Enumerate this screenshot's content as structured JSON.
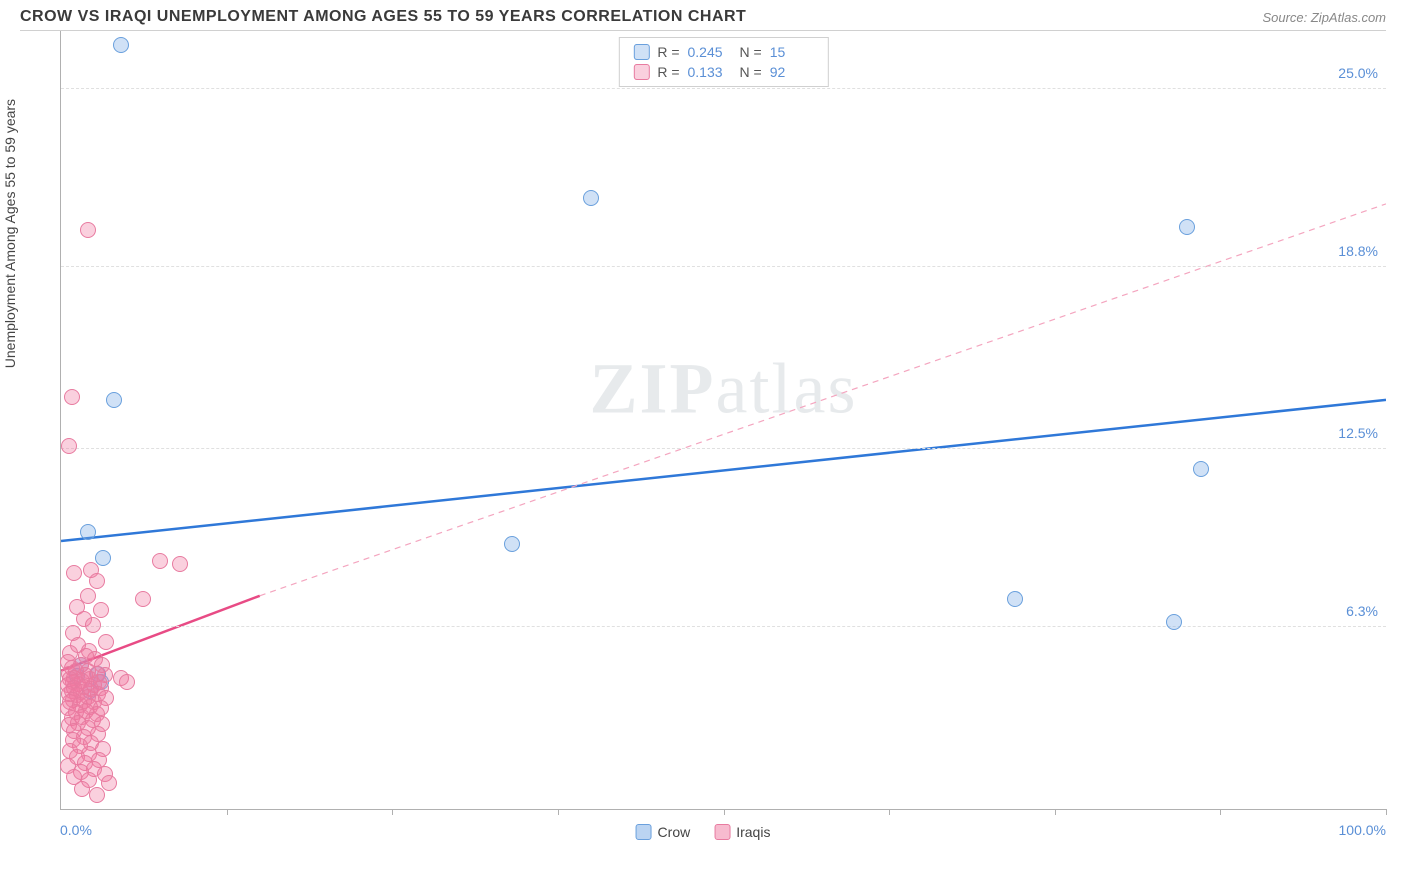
{
  "header": {
    "title": "CROW VS IRAQI UNEMPLOYMENT AMONG AGES 55 TO 59 YEARS CORRELATION CHART",
    "source": "Source: ZipAtlas.com"
  },
  "chart": {
    "type": "scatter",
    "ylabel": "Unemployment Among Ages 55 to 59 years",
    "xlim": [
      0,
      100
    ],
    "ylim": [
      0,
      27
    ],
    "xaxis_min_label": "0.0%",
    "xaxis_max_label": "100.0%",
    "ytick_labels": [
      {
        "value": 6.3,
        "label": "6.3%"
      },
      {
        "value": 12.5,
        "label": "12.5%"
      },
      {
        "value": 18.8,
        "label": "18.8%"
      },
      {
        "value": 25.0,
        "label": "25.0%"
      }
    ],
    "xtick_positions": [
      12.5,
      25,
      37.5,
      50,
      62.5,
      75,
      87.5,
      100
    ],
    "background_color": "#ffffff",
    "grid_color": "#e0e0e0",
    "axis_color": "#b0b0b0",
    "label_fontsize": 14,
    "tick_color": "#5a8fd6",
    "watermark": "ZIPatlas",
    "series": [
      {
        "name": "Crow",
        "color_fill": "rgba(120,170,230,0.35)",
        "color_stroke": "#6aa0dd",
        "marker_radius": 8,
        "trend": {
          "x1": 0,
          "y1": 9.3,
          "x2": 100,
          "y2": 14.2,
          "color": "#2f78d8",
          "width": 2.5,
          "dash": "none"
        },
        "R": "0.245",
        "N": "15",
        "points": [
          {
            "x": 4.5,
            "y": 26.5
          },
          {
            "x": 40,
            "y": 21.2
          },
          {
            "x": 85,
            "y": 20.2
          },
          {
            "x": 4,
            "y": 14.2
          },
          {
            "x": 86,
            "y": 11.8
          },
          {
            "x": 2,
            "y": 9.6
          },
          {
            "x": 34,
            "y": 9.2
          },
          {
            "x": 3.2,
            "y": 8.7
          },
          {
            "x": 72,
            "y": 7.3
          },
          {
            "x": 84,
            "y": 6.5
          },
          {
            "x": 1.5,
            "y": 5.0
          },
          {
            "x": 3.0,
            "y": 4.4
          },
          {
            "x": 1.2,
            "y": 4.6
          },
          {
            "x": 2.2,
            "y": 4.1
          },
          {
            "x": 2.8,
            "y": 4.7
          }
        ]
      },
      {
        "name": "Iraqis",
        "color_fill": "rgba(240,120,160,0.35)",
        "color_stroke": "#e87ba0",
        "marker_radius": 8,
        "trend_solid": {
          "x1": 0,
          "y1": 4.8,
          "x2": 15,
          "y2": 7.4,
          "color": "#e84b85",
          "width": 2.5
        },
        "trend_dash": {
          "x1": 15,
          "y1": 7.4,
          "x2": 100,
          "y2": 21.0,
          "color": "#f4a5bf",
          "width": 1.2
        },
        "R": "0.133",
        "N": "92",
        "points": [
          {
            "x": 2.0,
            "y": 20.1
          },
          {
            "x": 0.8,
            "y": 14.3
          },
          {
            "x": 0.6,
            "y": 12.6
          },
          {
            "x": 7.5,
            "y": 8.6
          },
          {
            "x": 9.0,
            "y": 8.5
          },
          {
            "x": 1.0,
            "y": 8.2
          },
          {
            "x": 2.3,
            "y": 8.3
          },
          {
            "x": 2.7,
            "y": 7.9
          },
          {
            "x": 6.2,
            "y": 7.3
          },
          {
            "x": 2.0,
            "y": 7.4
          },
          {
            "x": 1.2,
            "y": 7.0
          },
          {
            "x": 3.0,
            "y": 6.9
          },
          {
            "x": 1.7,
            "y": 6.6
          },
          {
            "x": 2.4,
            "y": 6.4
          },
          {
            "x": 0.9,
            "y": 6.1
          },
          {
            "x": 3.4,
            "y": 5.8
          },
          {
            "x": 1.3,
            "y": 5.7
          },
          {
            "x": 2.1,
            "y": 5.5
          },
          {
            "x": 0.7,
            "y": 5.4
          },
          {
            "x": 1.9,
            "y": 5.3
          },
          {
            "x": 2.6,
            "y": 5.2
          },
          {
            "x": 0.5,
            "y": 5.1
          },
          {
            "x": 1.5,
            "y": 5.0
          },
          {
            "x": 3.1,
            "y": 5.0
          },
          {
            "x": 0.8,
            "y": 4.9
          },
          {
            "x": 2.0,
            "y": 4.8
          },
          {
            "x": 1.1,
            "y": 4.8
          },
          {
            "x": 2.7,
            "y": 4.7
          },
          {
            "x": 0.6,
            "y": 4.7
          },
          {
            "x": 1.8,
            "y": 4.65
          },
          {
            "x": 3.3,
            "y": 4.65
          },
          {
            "x": 1.0,
            "y": 4.55
          },
          {
            "x": 2.2,
            "y": 4.5
          },
          {
            "x": 0.7,
            "y": 4.5
          },
          {
            "x": 1.6,
            "y": 4.45
          },
          {
            "x": 2.9,
            "y": 4.4
          },
          {
            "x": 0.9,
            "y": 4.4
          },
          {
            "x": 1.3,
            "y": 4.35
          },
          {
            "x": 4.5,
            "y": 4.55
          },
          {
            "x": 2.5,
            "y": 4.3
          },
          {
            "x": 0.5,
            "y": 4.3
          },
          {
            "x": 5.0,
            "y": 4.4
          },
          {
            "x": 1.7,
            "y": 4.25
          },
          {
            "x": 3.0,
            "y": 4.2
          },
          {
            "x": 1.0,
            "y": 4.2
          },
          {
            "x": 2.3,
            "y": 4.15
          },
          {
            "x": 0.8,
            "y": 4.1
          },
          {
            "x": 1.5,
            "y": 4.05
          },
          {
            "x": 2.8,
            "y": 4.0
          },
          {
            "x": 0.6,
            "y": 4.0
          },
          {
            "x": 1.2,
            "y": 3.95
          },
          {
            "x": 2.0,
            "y": 3.9
          },
          {
            "x": 3.4,
            "y": 3.85
          },
          {
            "x": 0.9,
            "y": 3.8
          },
          {
            "x": 1.7,
            "y": 3.75
          },
          {
            "x": 2.5,
            "y": 3.7
          },
          {
            "x": 0.7,
            "y": 3.7
          },
          {
            "x": 1.4,
            "y": 3.6
          },
          {
            "x": 2.2,
            "y": 3.55
          },
          {
            "x": 3.0,
            "y": 3.5
          },
          {
            "x": 0.5,
            "y": 3.5
          },
          {
            "x": 1.9,
            "y": 3.4
          },
          {
            "x": 1.1,
            "y": 3.35
          },
          {
            "x": 2.7,
            "y": 3.3
          },
          {
            "x": 1.6,
            "y": 3.2
          },
          {
            "x": 0.8,
            "y": 3.15
          },
          {
            "x": 2.4,
            "y": 3.1
          },
          {
            "x": 1.3,
            "y": 3.0
          },
          {
            "x": 3.1,
            "y": 2.95
          },
          {
            "x": 0.6,
            "y": 2.9
          },
          {
            "x": 2.0,
            "y": 2.8
          },
          {
            "x": 1.0,
            "y": 2.7
          },
          {
            "x": 2.8,
            "y": 2.6
          },
          {
            "x": 1.7,
            "y": 2.5
          },
          {
            "x": 0.9,
            "y": 2.4
          },
          {
            "x": 2.3,
            "y": 2.3
          },
          {
            "x": 1.4,
            "y": 2.2
          },
          {
            "x": 3.2,
            "y": 2.1
          },
          {
            "x": 0.7,
            "y": 2.0
          },
          {
            "x": 2.1,
            "y": 1.9
          },
          {
            "x": 1.2,
            "y": 1.8
          },
          {
            "x": 2.9,
            "y": 1.7
          },
          {
            "x": 1.8,
            "y": 1.6
          },
          {
            "x": 0.5,
            "y": 1.5
          },
          {
            "x": 2.5,
            "y": 1.4
          },
          {
            "x": 1.5,
            "y": 1.3
          },
          {
            "x": 3.3,
            "y": 1.2
          },
          {
            "x": 1.0,
            "y": 1.1
          },
          {
            "x": 2.1,
            "y": 1.0
          },
          {
            "x": 3.6,
            "y": 0.9
          },
          {
            "x": 1.6,
            "y": 0.7
          },
          {
            "x": 2.7,
            "y": 0.5
          }
        ]
      }
    ],
    "legend_bottom": [
      {
        "label": "Crow",
        "fill": "rgba(120,170,230,0.5)",
        "stroke": "#6aa0dd"
      },
      {
        "label": "Iraqis",
        "fill": "rgba(240,120,160,0.5)",
        "stroke": "#e87ba0"
      }
    ]
  }
}
